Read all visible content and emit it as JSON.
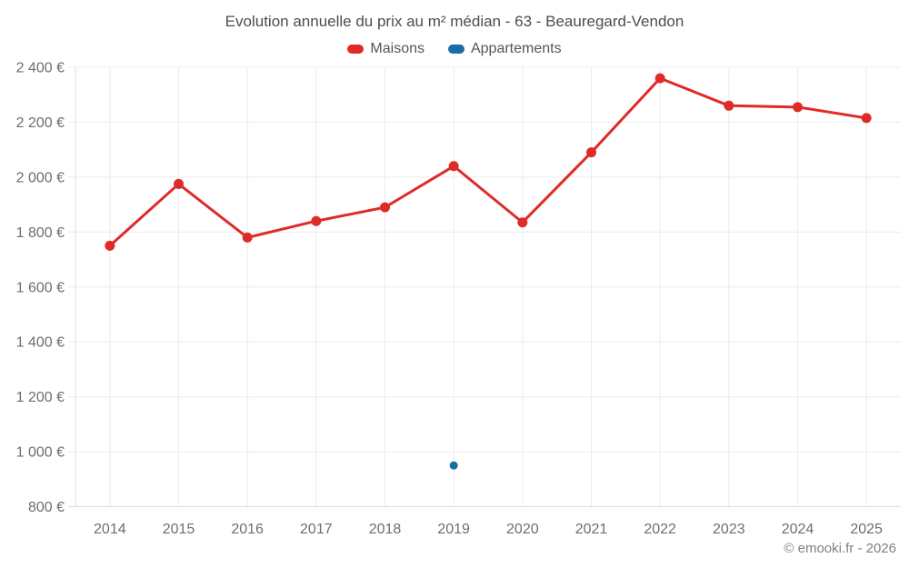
{
  "credit": "© emooki.fr - 2026",
  "chart_data": {
    "type": "line",
    "title": "Evolution annuelle du prix au m² médian - 63 - Beauregard-Vendon",
    "categories": [
      "2014",
      "2015",
      "2016",
      "2017",
      "2018",
      "2019",
      "2020",
      "2021",
      "2022",
      "2023",
      "2024",
      "2025"
    ],
    "series": [
      {
        "name": "Maisons",
        "color": "#df2b28",
        "marker_radius": 5.5,
        "line_width": 3,
        "values": [
          1750,
          1975,
          1780,
          1840,
          1890,
          2040,
          1835,
          2090,
          2360,
          2260,
          2255,
          2215
        ]
      },
      {
        "name": "Appartements",
        "color": "#176da4",
        "marker_radius": 4.5,
        "line_width": 3,
        "values": [
          null,
          null,
          null,
          null,
          null,
          950,
          null,
          null,
          null,
          null,
          null,
          null
        ]
      }
    ],
    "ylim": [
      800,
      2400
    ],
    "ytick_step": 200,
    "ytick_labels": [
      "800 €",
      "1 000 €",
      "1 200 €",
      "1 400 €",
      "1 600 €",
      "1 800 €",
      "2 000 €",
      "2 200 €",
      "2 400 €"
    ],
    "currency_suffix": "€",
    "grid": true,
    "legend_position": "top",
    "grid_color": "#ececec",
    "axis_color": "#dcdcdc"
  }
}
